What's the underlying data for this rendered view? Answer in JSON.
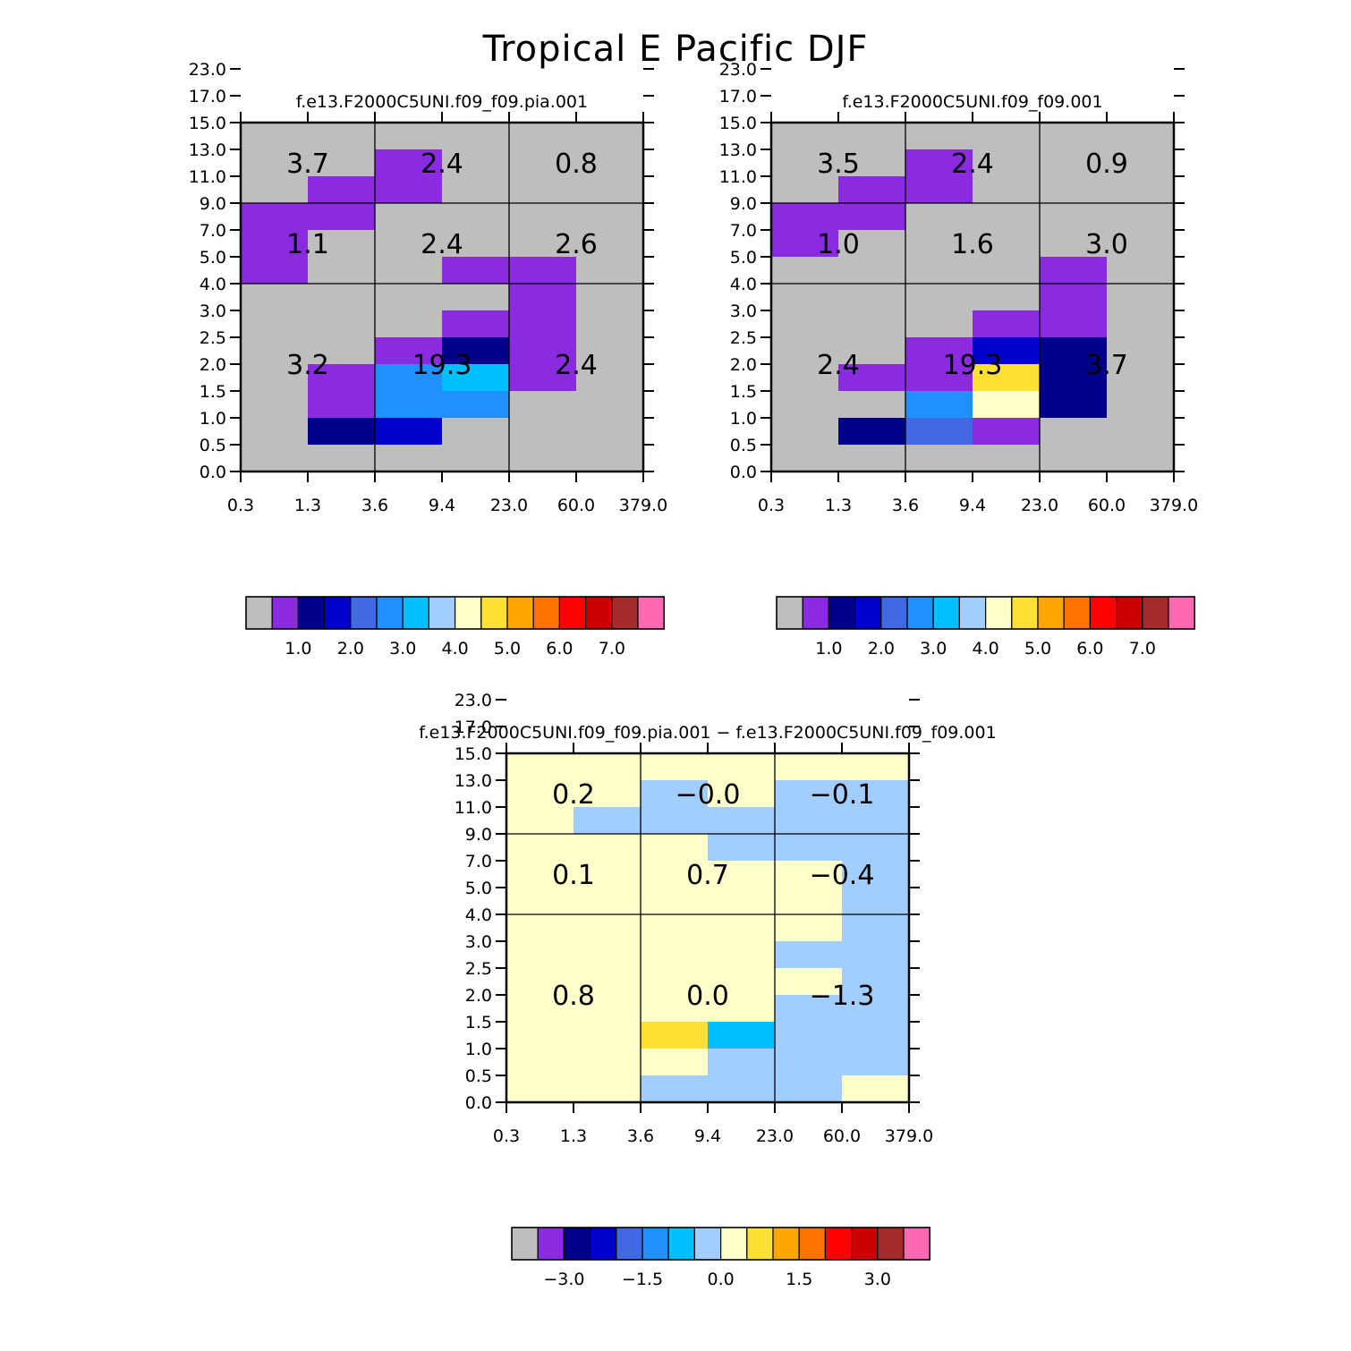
{
  "figure_title": "Tropical E Pacific DJF",
  "chart_data": [
    {
      "type": "heatmap",
      "title": "f.e13.F2000C5UNI.f09_f09.pia.001",
      "x_tick_labels": [
        "0.3",
        "1.3",
        "3.6",
        "9.4",
        "23.0",
        "60.0",
        "379.0"
      ],
      "y_tick_labels": [
        "0.0",
        "0.5",
        "1.0",
        "1.5",
        "2.0",
        "2.5",
        "3.0",
        "4.0",
        "5.0",
        "7.0",
        "9.0",
        "11.0",
        "13.0",
        "15.0",
        "17.0",
        "23.0"
      ],
      "cells_top_to_bottom": [
        [
          0,
          0,
          0,
          0,
          0,
          0
        ],
        [
          0,
          0,
          1,
          0,
          0,
          0
        ],
        [
          0,
          1,
          1,
          0,
          0,
          0
        ],
        [
          1,
          1,
          0,
          0,
          0,
          0
        ],
        [
          1,
          0,
          0,
          0,
          0,
          0
        ],
        [
          1,
          0,
          0,
          1,
          1,
          0
        ],
        [
          0,
          0,
          0,
          0,
          1,
          0
        ],
        [
          0,
          0,
          0,
          1,
          1,
          0
        ],
        [
          0,
          0,
          1,
          2,
          1,
          0
        ],
        [
          0,
          1,
          5,
          6,
          1,
          0
        ],
        [
          0,
          1,
          5,
          5,
          0,
          0
        ],
        [
          0,
          2,
          3,
          0,
          0,
          0
        ],
        [
          0,
          0,
          0,
          0,
          0,
          0
        ]
      ],
      "box_labels": [
        [
          "3.7",
          "2.4",
          "0.8"
        ],
        [
          "1.1",
          "2.4",
          "2.6"
        ],
        [
          "3.2",
          "19.3",
          "2.4"
        ]
      ],
      "colorbar": {
        "tick_labels": [
          "1.0",
          "2.0",
          "3.0",
          "4.0",
          "5.0",
          "6.0",
          "7.0"
        ],
        "tick_boundaries": [
          2,
          4,
          6,
          8,
          10,
          12,
          14
        ]
      }
    },
    {
      "type": "heatmap",
      "title": "f.e13.F2000C5UNI.f09_f09.001",
      "x_tick_labels": [
        "0.3",
        "1.3",
        "3.6",
        "9.4",
        "23.0",
        "60.0",
        "379.0"
      ],
      "y_tick_labels": [
        "0.0",
        "0.5",
        "1.0",
        "1.5",
        "2.0",
        "2.5",
        "3.0",
        "4.0",
        "5.0",
        "7.0",
        "9.0",
        "11.0",
        "13.0",
        "15.0",
        "17.0",
        "23.0"
      ],
      "cells_top_to_bottom": [
        [
          0,
          0,
          0,
          0,
          0,
          0
        ],
        [
          0,
          0,
          1,
          0,
          0,
          0
        ],
        [
          0,
          1,
          1,
          0,
          0,
          0
        ],
        [
          1,
          1,
          0,
          0,
          0,
          0
        ],
        [
          1,
          0,
          0,
          0,
          0,
          0
        ],
        [
          0,
          0,
          0,
          0,
          1,
          0
        ],
        [
          0,
          0,
          0,
          0,
          1,
          0
        ],
        [
          0,
          0,
          0,
          1,
          1,
          0
        ],
        [
          0,
          0,
          1,
          3,
          2,
          0
        ],
        [
          0,
          1,
          1,
          9,
          2,
          0
        ],
        [
          0,
          0,
          5,
          8,
          2,
          0
        ],
        [
          0,
          2,
          4,
          1,
          0,
          0
        ],
        [
          0,
          0,
          0,
          0,
          0,
          0
        ]
      ],
      "box_labels": [
        [
          "3.5",
          "2.4",
          "0.9"
        ],
        [
          "1.0",
          "1.6",
          "3.0"
        ],
        [
          "2.4",
          "19.3",
          "3.7"
        ]
      ],
      "colorbar": {
        "tick_labels": [
          "1.0",
          "2.0",
          "3.0",
          "4.0",
          "5.0",
          "6.0",
          "7.0"
        ],
        "tick_boundaries": [
          2,
          4,
          6,
          8,
          10,
          12,
          14
        ]
      }
    },
    {
      "type": "heatmap",
      "title": "f.e13.F2000C5UNI.f09_f09.pia.001 − f.e13.F2000C5UNI.f09_f09.001",
      "x_tick_labels": [
        "0.3",
        "1.3",
        "3.6",
        "9.4",
        "23.0",
        "60.0",
        "379.0"
      ],
      "y_tick_labels": [
        "0.0",
        "0.5",
        "1.0",
        "1.5",
        "2.0",
        "2.5",
        "3.0",
        "4.0",
        "5.0",
        "7.0",
        "9.0",
        "11.0",
        "13.0",
        "15.0",
        "17.0",
        "23.0"
      ],
      "cells_top_to_bottom": [
        [
          8,
          8,
          8,
          8,
          8,
          8
        ],
        [
          8,
          8,
          7,
          8,
          7,
          7
        ],
        [
          8,
          7,
          7,
          7,
          7,
          7
        ],
        [
          8,
          8,
          8,
          7,
          7,
          7
        ],
        [
          8,
          8,
          8,
          8,
          8,
          7
        ],
        [
          8,
          8,
          8,
          8,
          8,
          7
        ],
        [
          8,
          8,
          8,
          8,
          8,
          7
        ],
        [
          8,
          8,
          8,
          8,
          7,
          7
        ],
        [
          8,
          8,
          8,
          8,
          8,
          7
        ],
        [
          8,
          8,
          8,
          8,
          7,
          7
        ],
        [
          8,
          8,
          9,
          6,
          7,
          7
        ],
        [
          8,
          8,
          8,
          7,
          7,
          7
        ],
        [
          8,
          8,
          7,
          7,
          7,
          8
        ]
      ],
      "box_labels": [
        [
          "0.2",
          "−0.0",
          "−0.1"
        ],
        [
          "0.1",
          "0.7",
          "−0.4"
        ],
        [
          "0.8",
          "0.0",
          "−1.3"
        ]
      ],
      "colorbar": {
        "tick_labels": [
          "−3.0",
          "−1.5",
          "0.0",
          "1.5",
          "3.0"
        ],
        "tick_boundaries": [
          2,
          5,
          8,
          11,
          14
        ]
      }
    }
  ],
  "palette": [
    "#bebebe",
    "#8a2be2",
    "#00008b",
    "#0000cd",
    "#4169e1",
    "#1e90ff",
    "#00bfff",
    "#a2cdff",
    "#ffffcc",
    "#ffe135",
    "#ffa500",
    "#ff7400",
    "#ff0000",
    "#cd0000",
    "#a52a2a",
    "#ff69b4"
  ]
}
